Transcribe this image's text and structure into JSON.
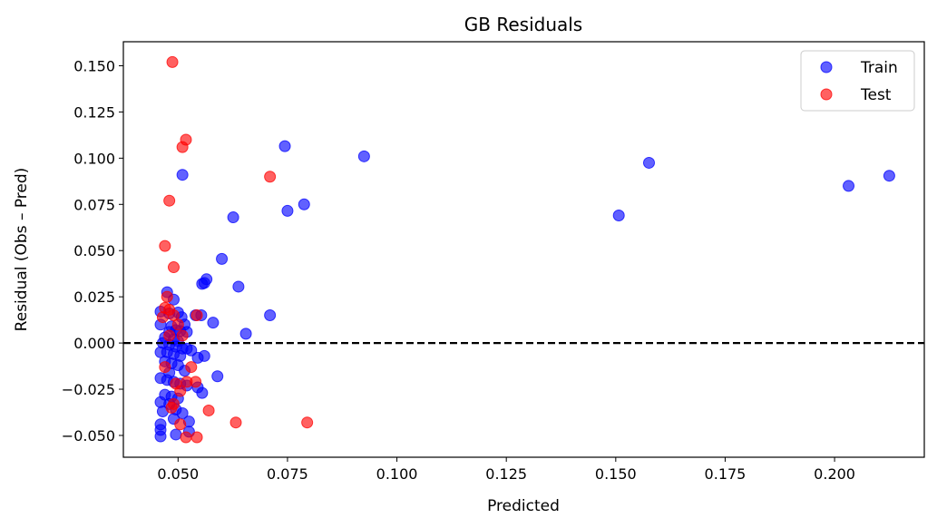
{
  "chart_data": {
    "type": "scatter",
    "title": "GB Residuals",
    "xlabel": "Predicted",
    "ylabel": "Residual (Obs – Pred)",
    "xlim": [
      0.0375,
      0.2205
    ],
    "ylim": [
      -0.0618,
      0.163
    ],
    "xticks": [
      0.05,
      0.075,
      0.1,
      0.125,
      0.15,
      0.175,
      0.2
    ],
    "xtick_labels": [
      "0.050",
      "0.075",
      "0.100",
      "0.125",
      "0.150",
      "0.175",
      "0.200"
    ],
    "yticks": [
      -0.05,
      -0.025,
      0.0,
      0.025,
      0.05,
      0.075,
      0.1,
      0.125,
      0.15
    ],
    "ytick_labels": [
      "−0.050",
      "−0.025",
      "0.000",
      "0.025",
      "0.050",
      "0.075",
      "0.100",
      "0.125",
      "0.150"
    ],
    "reference_line": {
      "y": 0.0,
      "style": "dashed",
      "color": "#000000"
    },
    "grid": false,
    "legend_position": "top-right",
    "series": [
      {
        "name": "Train",
        "color": "#0000ff",
        "points": [
          [
            0.0744,
            0.1065
          ],
          [
            0.0925,
            0.101
          ],
          [
            0.1576,
            0.0975
          ],
          [
            0.2125,
            0.0905
          ],
          [
            0.2032,
            0.085
          ],
          [
            0.051,
            0.091
          ],
          [
            0.0788,
            0.075
          ],
          [
            0.075,
            0.0715
          ],
          [
            0.0626,
            0.068
          ],
          [
            0.1507,
            0.069
          ],
          [
            0.06,
            0.0455
          ],
          [
            0.0565,
            0.0345
          ],
          [
            0.0555,
            0.032
          ],
          [
            0.056,
            0.0325
          ],
          [
            0.0638,
            0.0305
          ],
          [
            0.0475,
            0.0275
          ],
          [
            0.049,
            0.0235
          ],
          [
            0.046,
            0.017
          ],
          [
            0.048,
            0.016
          ],
          [
            0.05,
            0.0165
          ],
          [
            0.0508,
            0.014
          ],
          [
            0.054,
            0.015
          ],
          [
            0.0553,
            0.015
          ],
          [
            0.071,
            0.015
          ],
          [
            0.058,
            0.011
          ],
          [
            0.046,
            0.01
          ],
          [
            0.0485,
            0.009
          ],
          [
            0.0515,
            0.01
          ],
          [
            0.0495,
            0.007
          ],
          [
            0.048,
            0.006
          ],
          [
            0.0505,
            0.0065
          ],
          [
            0.052,
            0.006
          ],
          [
            0.0655,
            0.005
          ],
          [
            0.047,
            0.003
          ],
          [
            0.049,
            0.002
          ],
          [
            0.05,
            0.001
          ],
          [
            0.0465,
            0.0
          ],
          [
            0.048,
            -0.001
          ],
          [
            0.0495,
            -0.002
          ],
          [
            0.051,
            -0.003
          ],
          [
            0.052,
            -0.003
          ],
          [
            0.053,
            -0.004
          ],
          [
            0.046,
            -0.005
          ],
          [
            0.0475,
            -0.005
          ],
          [
            0.049,
            -0.006
          ],
          [
            0.0505,
            -0.007
          ],
          [
            0.056,
            -0.007
          ],
          [
            0.0545,
            -0.008
          ],
          [
            0.047,
            -0.01
          ],
          [
            0.0485,
            -0.011
          ],
          [
            0.05,
            -0.012
          ],
          [
            0.0515,
            -0.015
          ],
          [
            0.048,
            -0.016
          ],
          [
            0.059,
            -0.018
          ],
          [
            0.046,
            -0.019
          ],
          [
            0.0475,
            -0.02
          ],
          [
            0.049,
            -0.021
          ],
          [
            0.0505,
            -0.022
          ],
          [
            0.052,
            -0.023
          ],
          [
            0.0545,
            -0.024
          ],
          [
            0.0555,
            -0.027
          ],
          [
            0.047,
            -0.028
          ],
          [
            0.0485,
            -0.029
          ],
          [
            0.05,
            -0.03
          ],
          [
            0.046,
            -0.032
          ],
          [
            0.048,
            -0.033
          ],
          [
            0.0495,
            -0.036
          ],
          [
            0.0465,
            -0.037
          ],
          [
            0.051,
            -0.038
          ],
          [
            0.049,
            -0.041
          ],
          [
            0.046,
            -0.044
          ],
          [
            0.0525,
            -0.0425
          ],
          [
            0.046,
            -0.047
          ],
          [
            0.0525,
            -0.048
          ],
          [
            0.0495,
            -0.0495
          ],
          [
            0.046,
            -0.0505
          ]
        ]
      },
      {
        "name": "Test",
        "color": "#ff0000",
        "points": [
          [
            0.0487,
            0.152
          ],
          [
            0.0518,
            0.11
          ],
          [
            0.051,
            0.106
          ],
          [
            0.071,
            0.09
          ],
          [
            0.048,
            0.077
          ],
          [
            0.047,
            0.0525
          ],
          [
            0.049,
            0.041
          ],
          [
            0.0475,
            0.025
          ],
          [
            0.047,
            0.019
          ],
          [
            0.048,
            0.018
          ],
          [
            0.049,
            0.015
          ],
          [
            0.0543,
            0.015
          ],
          [
            0.0465,
            0.014
          ],
          [
            0.05,
            0.01
          ],
          [
            0.048,
            0.004
          ],
          [
            0.051,
            0.004
          ],
          [
            0.047,
            -0.013
          ],
          [
            0.053,
            -0.013
          ],
          [
            0.052,
            -0.021
          ],
          [
            0.054,
            -0.021
          ],
          [
            0.0495,
            -0.022
          ],
          [
            0.0505,
            -0.026
          ],
          [
            0.049,
            -0.033
          ],
          [
            0.0485,
            -0.035
          ],
          [
            0.057,
            -0.0365
          ],
          [
            0.0632,
            -0.043
          ],
          [
            0.0795,
            -0.043
          ],
          [
            0.0505,
            -0.044
          ],
          [
            0.0518,
            -0.051
          ],
          [
            0.0543,
            -0.051
          ]
        ]
      }
    ]
  }
}
